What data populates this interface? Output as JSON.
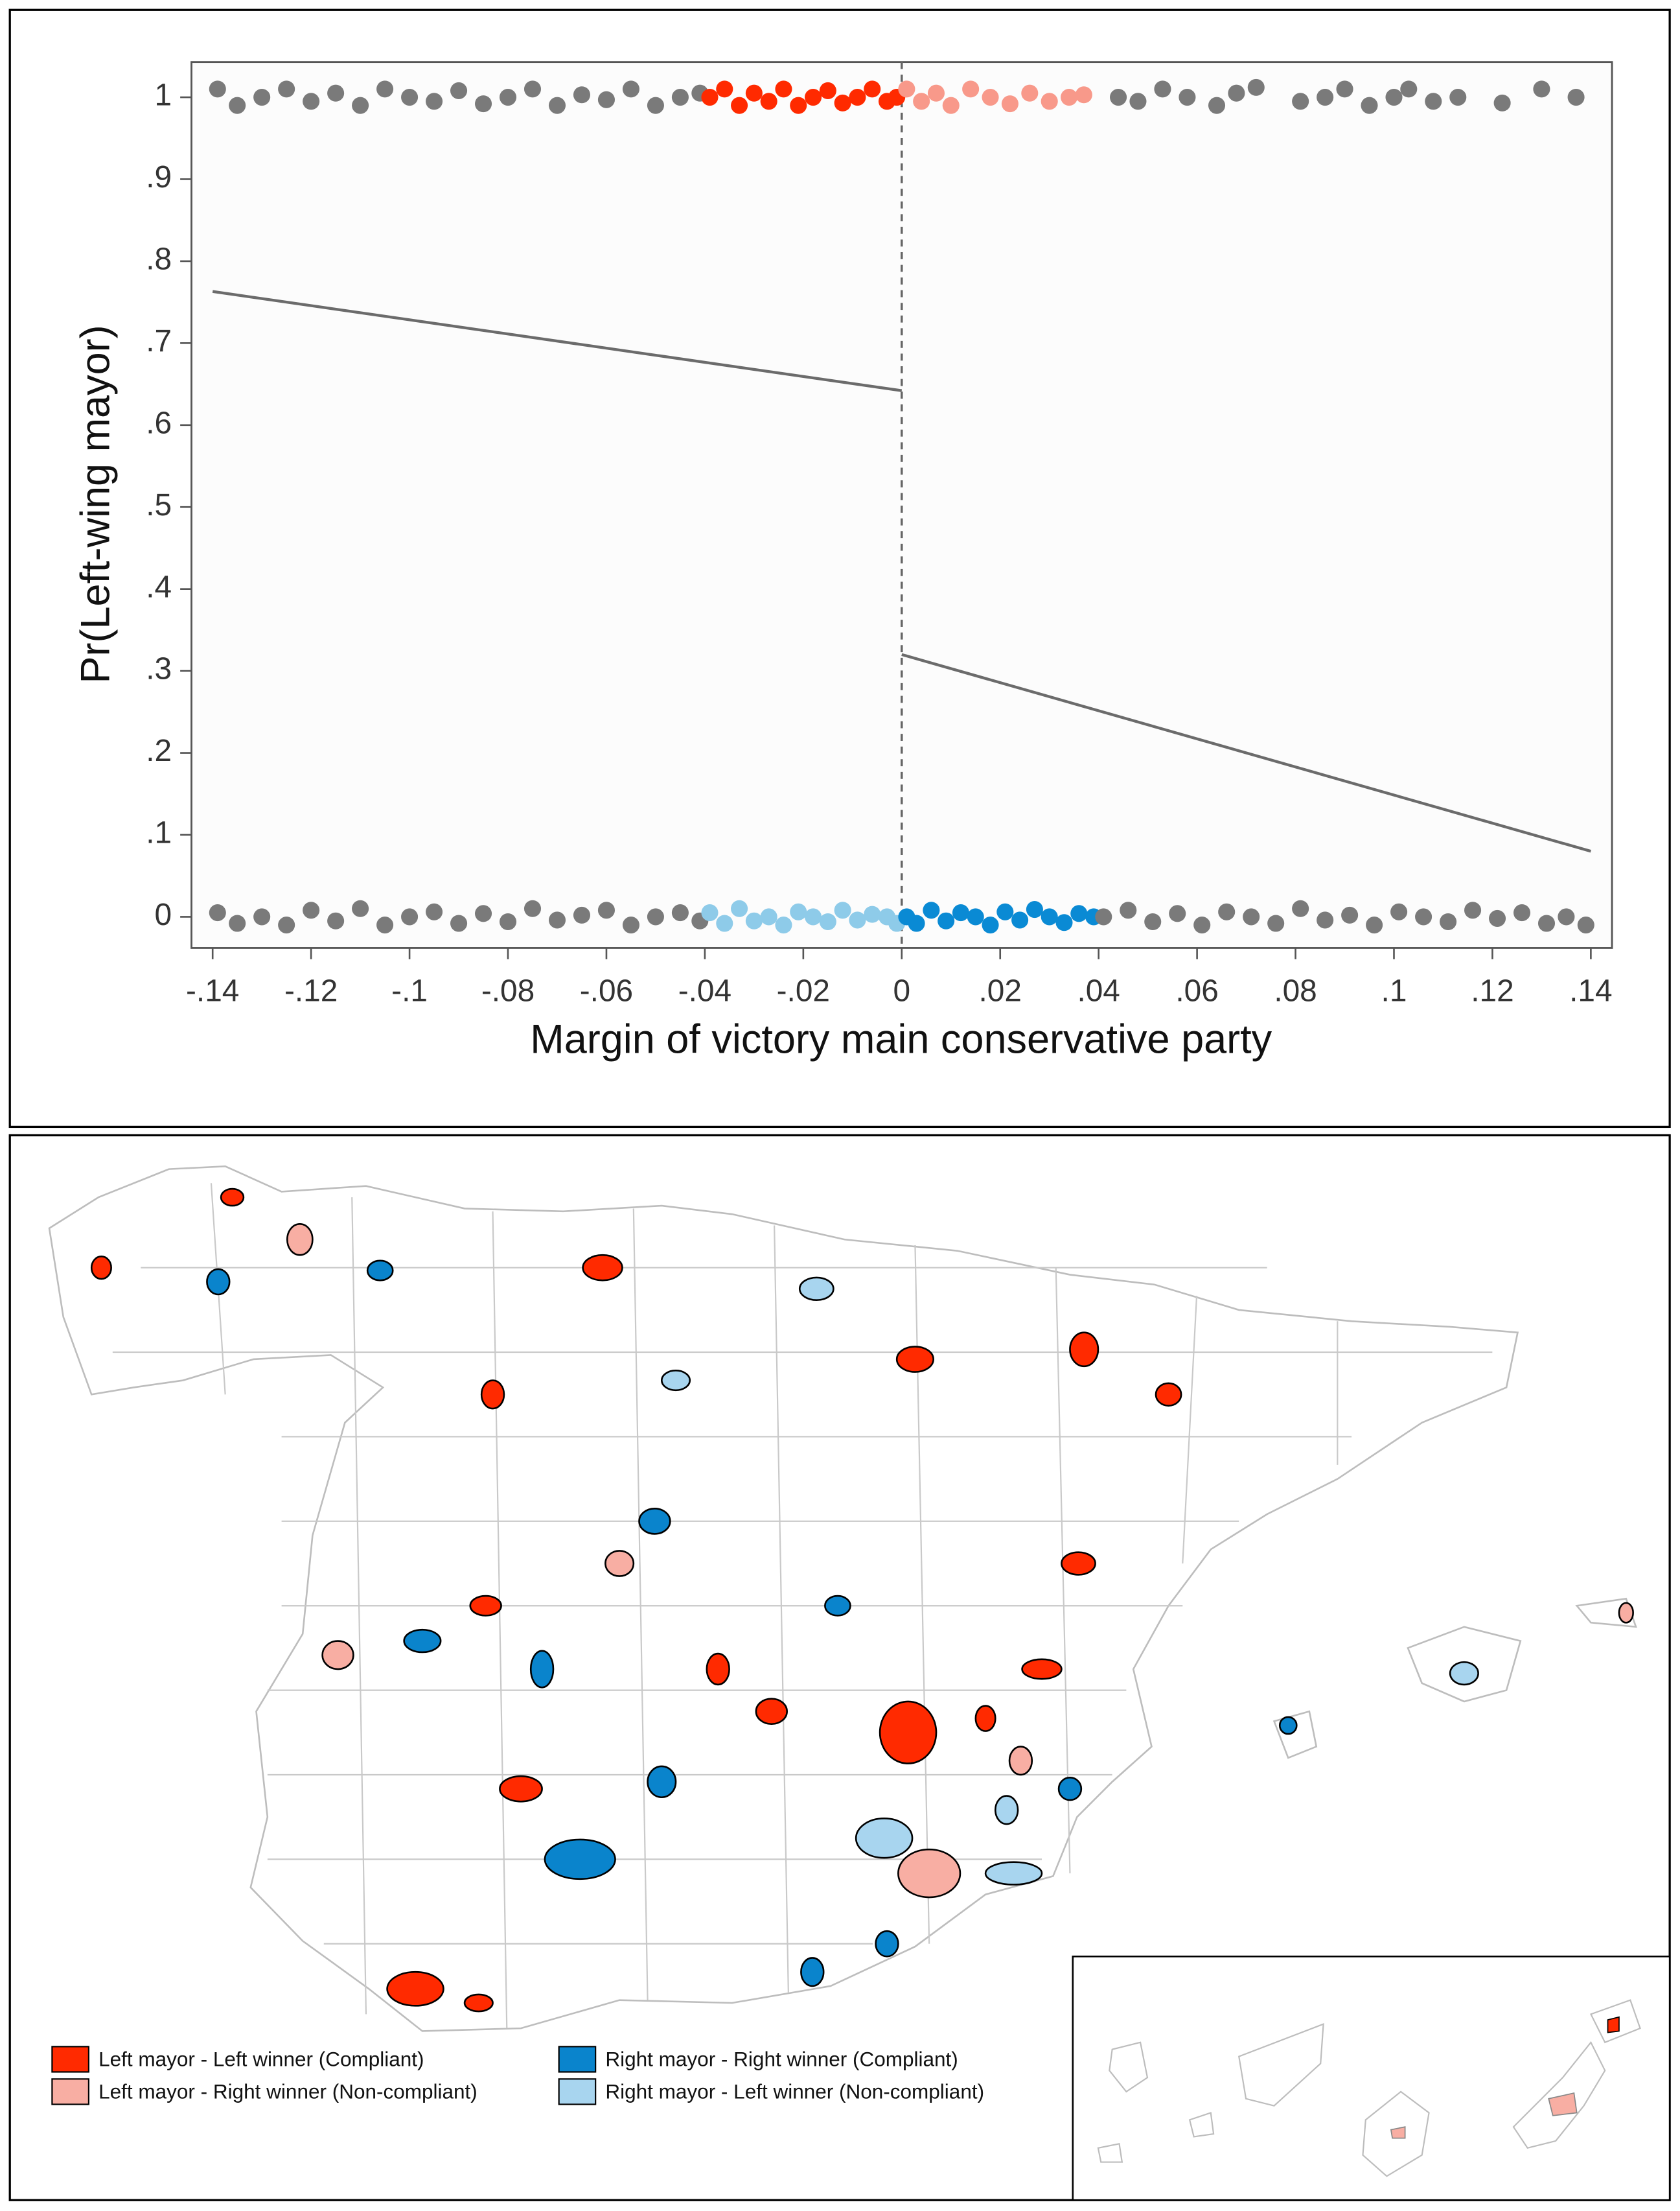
{
  "chart_data": {
    "type": "scatter",
    "x_label": "Margin of victory main conservative party",
    "y_label": "Pr(Left-wing mayor)",
    "xlim": [
      -0.1443,
      0.1443
    ],
    "ylim": [
      -0.038,
      1.043
    ],
    "xticks": [
      {
        "value": -0.14,
        "label": "-.14"
      },
      {
        "value": -0.12,
        "label": "-.12"
      },
      {
        "value": -0.1,
        "label": "-.1"
      },
      {
        "value": -0.08,
        "label": "-.08"
      },
      {
        "value": -0.06,
        "label": "-.06"
      },
      {
        "value": -0.04,
        "label": "-.04"
      },
      {
        "value": -0.02,
        "label": "-.02"
      },
      0,
      {
        "value": 0.02,
        "label": ".02"
      },
      {
        "value": 0.04,
        "label": ".04"
      },
      {
        "value": 0.06,
        "label": ".06"
      },
      {
        "value": 0.08,
        "label": ".08"
      },
      {
        "value": 0.1,
        "label": ".1"
      },
      {
        "value": 0.12,
        "label": ".12"
      },
      {
        "value": 0.14,
        "label": ".14"
      }
    ],
    "yticks": [
      0,
      {
        "value": 0.1,
        "label": ".1"
      },
      {
        "value": 0.2,
        "label": ".2"
      },
      {
        "value": 0.3,
        "label": ".3"
      },
      {
        "value": 0.4,
        "label": ".4"
      },
      {
        "value": 0.5,
        "label": ".5"
      },
      {
        "value": 0.6,
        "label": ".6"
      },
      {
        "value": 0.7,
        "label": ".7"
      },
      {
        "value": 0.8,
        "label": ".8"
      },
      {
        "value": 0.9,
        "label": ".9"
      },
      1
    ],
    "grid": false,
    "cutoff": 0,
    "series": [
      {
        "color": "#7a7a7a",
        "x": [
          -0.139,
          -0.135,
          -0.13,
          -0.125,
          -0.12,
          -0.115,
          -0.11,
          -0.105,
          -0.1,
          -0.095,
          -0.09,
          -0.085,
          -0.08,
          -0.075,
          -0.07,
          -0.065,
          -0.06,
          -0.055,
          -0.05,
          -0.045,
          -0.041
        ],
        "values": [
          1.01,
          0.99,
          1.0,
          1.01,
          0.995,
          1.005,
          0.99,
          1.01,
          1.0,
          0.995,
          1.008,
          0.992,
          1.0,
          1.01,
          0.99,
          1.003,
          0.997,
          1.01,
          0.99,
          1.0,
          1.005
        ]
      },
      {
        "color": "#ff2a00",
        "x": [
          -0.039,
          -0.036,
          -0.033,
          -0.03,
          -0.027,
          -0.024,
          -0.021,
          -0.018,
          -0.015,
          -0.012,
          -0.009,
          -0.006,
          -0.003,
          -0.001
        ],
        "values": [
          1.0,
          1.01,
          0.99,
          1.005,
          0.995,
          1.01,
          0.99,
          1.0,
          1.008,
          0.993,
          1.0,
          1.01,
          0.995,
          1.0
        ]
      },
      {
        "color": "#f8998a",
        "x": [
          0.001,
          0.004,
          0.007,
          0.01,
          0.014,
          0.018,
          0.022,
          0.026,
          0.03,
          0.034,
          0.037
        ],
        "values": [
          1.01,
          0.995,
          1.005,
          0.99,
          1.01,
          1.0,
          0.992,
          1.005,
          0.995,
          1.0,
          1.003
        ]
      },
      {
        "color": "#7a7a7a",
        "x": [
          0.044,
          0.048,
          0.053,
          0.058,
          0.064,
          0.068,
          0.072,
          0.081,
          0.086,
          0.09,
          0.095,
          0.1,
          0.103,
          0.108,
          0.113,
          0.122,
          0.13,
          0.137
        ],
        "values": [
          1.0,
          0.995,
          1.01,
          1.0,
          0.99,
          1.005,
          1.012,
          0.995,
          1.0,
          1.01,
          0.99,
          1.0,
          1.01,
          0.995,
          1.0,
          0.993,
          1.01,
          1.0
        ]
      },
      {
        "color": "#7a7a7a",
        "x": [
          -0.139,
          -0.135,
          -0.13,
          -0.125,
          -0.12,
          -0.115,
          -0.11,
          -0.105,
          -0.1,
          -0.095,
          -0.09,
          -0.085,
          -0.08,
          -0.075,
          -0.07,
          -0.065,
          -0.06,
          -0.055,
          -0.05,
          -0.045,
          -0.041
        ],
        "values": [
          0.005,
          -0.008,
          0.0,
          -0.01,
          0.008,
          -0.005,
          0.01,
          -0.01,
          0.0,
          0.006,
          -0.008,
          0.004,
          -0.006,
          0.01,
          -0.004,
          0.002,
          0.008,
          -0.01,
          0.0,
          0.005,
          -0.005
        ]
      },
      {
        "color": "#8ecbe9",
        "x": [
          -0.039,
          -0.036,
          -0.033,
          -0.03,
          -0.027,
          -0.024,
          -0.021,
          -0.018,
          -0.015,
          -0.012,
          -0.009,
          -0.006,
          -0.003,
          -0.001
        ],
        "values": [
          0.005,
          -0.008,
          0.01,
          -0.005,
          0.0,
          -0.01,
          0.006,
          0.0,
          -0.006,
          0.008,
          -0.004,
          0.003,
          0.0,
          -0.008
        ]
      },
      {
        "color": "#0a8ad4",
        "x": [
          0.001,
          0.003,
          0.006,
          0.009,
          0.012,
          0.015,
          0.018,
          0.021,
          0.024,
          0.027,
          0.03,
          0.033,
          0.036,
          0.039
        ],
        "values": [
          0.0,
          -0.008,
          0.008,
          -0.005,
          0.005,
          0.0,
          -0.01,
          0.006,
          -0.004,
          0.009,
          0.0,
          -0.007,
          0.004,
          0.0
        ]
      },
      {
        "color": "#7a7a7a",
        "x": [
          0.041,
          0.046,
          0.051,
          0.056,
          0.061,
          0.066,
          0.071,
          0.076,
          0.081,
          0.086,
          0.091,
          0.096,
          0.101,
          0.106,
          0.111,
          0.116,
          0.121,
          0.126,
          0.131,
          0.135,
          0.139
        ],
        "values": [
          0.0,
          0.008,
          -0.006,
          0.004,
          -0.01,
          0.006,
          0.0,
          -0.008,
          0.01,
          -0.004,
          0.002,
          -0.01,
          0.006,
          0.0,
          -0.006,
          0.008,
          -0.002,
          0.005,
          -0.008,
          0.0,
          -0.01
        ]
      }
    ],
    "fit_lines": [
      {
        "color": "#6b6b6b",
        "x": [
          -0.14,
          0
        ],
        "values": [
          0.763,
          0.642
        ]
      },
      {
        "color": "#6b6b6b",
        "x": [
          0,
          0.14
        ],
        "values": [
          0.32,
          0.08
        ]
      }
    ]
  },
  "map": {
    "legend": [
      {
        "label": "Left mayor - Left winner (Compliant)",
        "color": "#ff2a00"
      },
      {
        "label": "Left mayor - Right winner (Non-compliant)",
        "color": "#f8aea3"
      },
      {
        "label": "Right mayor - Right winner (Compliant)",
        "color": "#0a84cc"
      },
      {
        "label": "Right mayor - Left winner (Non-compliant)",
        "color": "#a8d5ef"
      }
    ]
  }
}
